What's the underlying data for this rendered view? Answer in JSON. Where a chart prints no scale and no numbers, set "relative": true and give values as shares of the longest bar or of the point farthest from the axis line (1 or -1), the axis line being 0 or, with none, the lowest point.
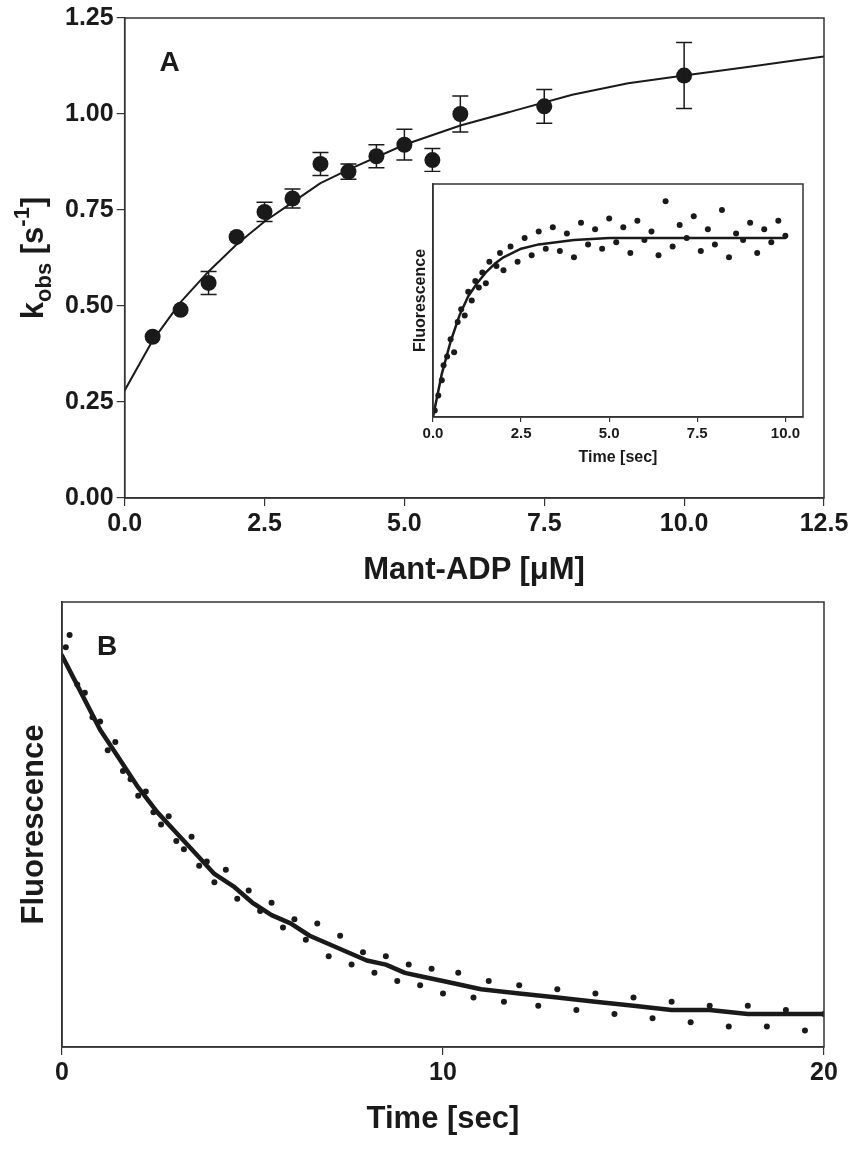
{
  "chart_data": [
    {
      "type": "scatter",
      "annotations": [
        "A"
      ],
      "xlabel": "Mant-ADP [μM]",
      "ylabel": "k$_{obs}$ [s$^{-1}$]",
      "xlim": [
        0,
        12.5
      ],
      "ylim": [
        0,
        1.25
      ],
      "xticks": [
        {
          "value": 0,
          "label": "0.0"
        },
        {
          "value": 2.5,
          "label": "2.5"
        },
        {
          "value": 5,
          "label": "5.0"
        },
        {
          "value": 7.5,
          "label": "7.5"
        },
        {
          "value": 10,
          "label": "10.0"
        },
        {
          "value": 12.5,
          "label": "12.5"
        }
      ],
      "yticks": [
        {
          "value": 0,
          "label": "0.00"
        },
        {
          "value": 0.25,
          "label": "0.25"
        },
        {
          "value": 0.5,
          "label": "0.50"
        },
        {
          "value": 0.75,
          "label": "0.75"
        },
        {
          "value": 1,
          "label": "1.00"
        },
        {
          "value": 1.25,
          "label": "1.25"
        }
      ],
      "series": [
        {
          "type": "scatter",
          "marker": "circle",
          "color": "#1a1a1a",
          "x": [
            0.5,
            1,
            1.5,
            2,
            2.5,
            3,
            3.5,
            4,
            4.5,
            5,
            5.5,
            6,
            7.5,
            10
          ],
          "values": [
            0.42,
            0.49,
            0.56,
            0.68,
            0.745,
            0.78,
            0.87,
            0.85,
            0.89,
            0.92,
            0.88,
            1.0,
            1.02,
            1.1
          ],
          "errors": [
            null,
            null,
            0.03,
            null,
            0.025,
            0.025,
            0.03,
            0.02,
            0.03,
            0.04,
            0.03,
            0.047,
            0.044,
            0.086
          ]
        },
        {
          "type": "line",
          "marker": "none",
          "color": "#1a1a1a",
          "x": [
            0,
            0.5,
            1,
            1.5,
            2,
            2.5,
            3,
            3.5,
            4,
            5,
            6,
            7,
            8,
            9,
            10,
            11,
            12,
            12.5
          ],
          "values": [
            0.28,
            0.41,
            0.51,
            0.59,
            0.66,
            0.72,
            0.77,
            0.82,
            0.855,
            0.92,
            0.97,
            1.01,
            1.05,
            1.08,
            1.1,
            1.12,
            1.14,
            1.15
          ]
        }
      ]
    },
    {
      "type": "scatter",
      "relative": true,
      "xlabel": "Time [sec]",
      "ylabel": "Fluorescence",
      "xlim": [
        0,
        10.5
      ],
      "xticks": [
        {
          "value": 0,
          "label": "0.0"
        },
        {
          "value": 2.5,
          "label": "2.5"
        },
        {
          "value": 5,
          "label": "5.0"
        },
        {
          "value": 7.5,
          "label": "7.5"
        },
        {
          "value": 10,
          "label": "10.0"
        }
      ],
      "series": [
        {
          "type": "scatter",
          "marker": "circle",
          "color": "#1a1a1a",
          "x": [
            0.05,
            0.15,
            0.25,
            0.3,
            0.4,
            0.5,
            0.6,
            0.7,
            0.8,
            0.9,
            1.0,
            1.1,
            1.2,
            1.3,
            1.4,
            1.5,
            1.6,
            1.8,
            1.9,
            2.0,
            2.2,
            2.4,
            2.6,
            2.8,
            3.0,
            3.2,
            3.4,
            3.6,
            3.8,
            4.0,
            4.2,
            4.4,
            4.6,
            4.8,
            5.0,
            5.2,
            5.4,
            5.6,
            5.8,
            6.0,
            6.2,
            6.4,
            6.6,
            6.8,
            7.0,
            7.2,
            7.4,
            7.6,
            7.8,
            8.0,
            8.2,
            8.4,
            8.6,
            8.8,
            9.0,
            9.2,
            9.4,
            9.6,
            9.8,
            10.0
          ],
          "values": [
            0.03,
            0.1,
            0.17,
            0.24,
            0.28,
            0.36,
            0.3,
            0.44,
            0.5,
            0.47,
            0.58,
            0.54,
            0.63,
            0.6,
            0.67,
            0.62,
            0.72,
            0.7,
            0.76,
            0.68,
            0.79,
            0.72,
            0.83,
            0.75,
            0.86,
            0.78,
            0.88,
            0.77,
            0.85,
            0.74,
            0.9,
            0.8,
            0.87,
            0.78,
            0.92,
            0.81,
            0.88,
            0.76,
            0.91,
            0.82,
            0.86,
            0.75,
            1.0,
            0.79,
            0.89,
            0.83,
            0.93,
            0.77,
            0.87,
            0.8,
            0.96,
            0.74,
            0.85,
            0.82,
            0.9,
            0.76,
            0.87,
            0.81,
            0.91,
            0.84
          ]
        },
        {
          "type": "line",
          "marker": "none",
          "color": "#1a1a1a",
          "x": [
            0,
            0.25,
            0.5,
            0.75,
            1,
            1.25,
            1.5,
            1.75,
            2,
            2.5,
            3,
            3.5,
            4,
            5,
            6,
            7,
            8,
            9,
            10
          ],
          "values": [
            0,
            0.2,
            0.35,
            0.47,
            0.56,
            0.62,
            0.67,
            0.71,
            0.74,
            0.78,
            0.8,
            0.81,
            0.82,
            0.83,
            0.83,
            0.83,
            0.83,
            0.83,
            0.83
          ]
        }
      ]
    },
    {
      "type": "scatter",
      "relative": true,
      "annotations": [
        "B"
      ],
      "xlabel": "Time [sec]",
      "ylabel": "Fluorescence",
      "xlim": [
        0,
        20
      ],
      "xticks": [
        0,
        10,
        20
      ],
      "series": [
        {
          "type": "scatter",
          "marker": "circle",
          "color": "#1a1a1a",
          "x": [
            0.1,
            0.2,
            0.4,
            0.6,
            0.8,
            1.0,
            1.2,
            1.4,
            1.6,
            1.8,
            2.0,
            2.2,
            2.4,
            2.6,
            2.8,
            3.0,
            3.2,
            3.4,
            3.6,
            3.8,
            4.0,
            4.3,
            4.6,
            4.9,
            5.2,
            5.5,
            5.8,
            6.1,
            6.4,
            6.7,
            7.0,
            7.3,
            7.6,
            7.9,
            8.2,
            8.5,
            8.8,
            9.1,
            9.4,
            9.7,
            10.0,
            10.4,
            10.8,
            11.2,
            11.6,
            12.0,
            12.5,
            13.0,
            13.5,
            14.0,
            14.5,
            15.0,
            15.5,
            16.0,
            16.5,
            17.0,
            17.5,
            18.0,
            18.5,
            19.0,
            19.5,
            20.0
          ],
          "values": [
            0.97,
            1.0,
            0.88,
            0.86,
            0.8,
            0.79,
            0.72,
            0.74,
            0.67,
            0.65,
            0.61,
            0.62,
            0.57,
            0.54,
            0.56,
            0.5,
            0.48,
            0.51,
            0.44,
            0.45,
            0.4,
            0.43,
            0.36,
            0.38,
            0.33,
            0.35,
            0.29,
            0.31,
            0.26,
            0.3,
            0.22,
            0.27,
            0.2,
            0.23,
            0.18,
            0.22,
            0.16,
            0.2,
            0.15,
            0.19,
            0.13,
            0.18,
            0.12,
            0.16,
            0.11,
            0.15,
            0.1,
            0.14,
            0.09,
            0.13,
            0.08,
            0.12,
            0.07,
            0.11,
            0.06,
            0.1,
            0.05,
            0.1,
            0.05,
            0.09,
            0.04,
            0.08
          ]
        },
        {
          "type": "line",
          "marker": "none",
          "color": "#1a1a1a",
          "x": [
            0,
            0.5,
            1,
            1.5,
            2,
            2.5,
            3,
            3.5,
            4,
            4.5,
            5,
            5.5,
            6,
            6.5,
            7,
            7.5,
            8,
            8.5,
            9,
            9.5,
            10,
            11,
            12,
            13,
            14,
            15,
            16,
            17,
            18,
            19,
            20
          ],
          "values": [
            0.95,
            0.86,
            0.77,
            0.7,
            0.63,
            0.57,
            0.52,
            0.47,
            0.42,
            0.39,
            0.35,
            0.32,
            0.3,
            0.27,
            0.25,
            0.23,
            0.21,
            0.2,
            0.18,
            0.17,
            0.16,
            0.14,
            0.13,
            0.12,
            0.11,
            0.1,
            0.09,
            0.09,
            0.08,
            0.08,
            0.08
          ]
        }
      ]
    }
  ]
}
